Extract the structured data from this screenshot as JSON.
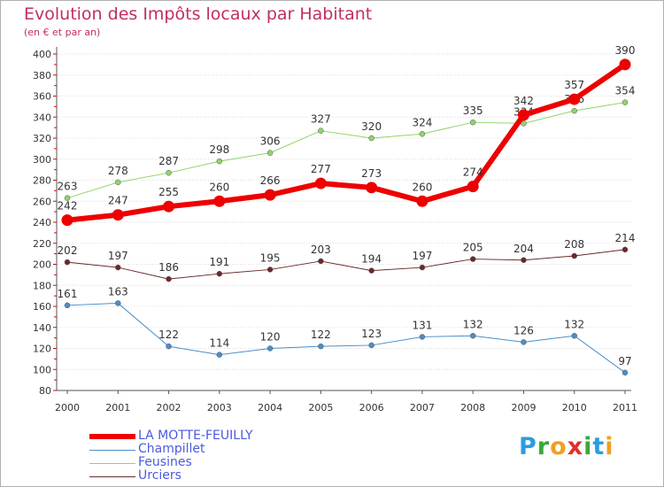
{
  "title": "Evolution des Impôts locaux par Habitant",
  "subtitle": "(en € et par an)",
  "logo": {
    "letters": [
      "P",
      "r",
      "o",
      "x",
      "i",
      "t",
      "i"
    ],
    "colors": [
      "#2b9de0",
      "#3aa83a",
      "#f0a020",
      "#e03030",
      "#3aa83a",
      "#2b9de0",
      "#f0a020"
    ]
  },
  "colors": {
    "axis": "#555555",
    "grid": "#dddddd",
    "tick_text": "#333333",
    "tick_red": "#e00000"
  },
  "chart_data": {
    "type": "line",
    "x": [
      "2000",
      "2001",
      "2002",
      "2003",
      "2004",
      "2005",
      "2006",
      "2007",
      "2008",
      "2009",
      "2010",
      "2011"
    ],
    "ylim": [
      80,
      400
    ],
    "yticks": [
      80,
      100,
      120,
      140,
      160,
      180,
      200,
      220,
      240,
      260,
      280,
      300,
      320,
      340,
      360,
      380,
      400
    ],
    "grid": "horizontal",
    "legend_position": "bottom-left",
    "series": [
      {
        "name": "Champillet",
        "color": "#4a8ec8",
        "width": 1,
        "values": [
          161,
          163,
          122,
          114,
          120,
          122,
          123,
          131,
          132,
          126,
          132,
          97
        ]
      },
      {
        "name": "Feusines",
        "color": "#8fd46a",
        "width": 1,
        "values": [
          263,
          278,
          287,
          298,
          306,
          327,
          320,
          324,
          335,
          334,
          346,
          354
        ]
      },
      {
        "name": "Urciers",
        "color": "#6a2a2a",
        "width": 1,
        "values": [
          202,
          197,
          186,
          191,
          195,
          203,
          194,
          197,
          205,
          204,
          208,
          214
        ]
      },
      {
        "name": "LA MOTTE-FEUILLY",
        "color": "#ee0000",
        "width": 6,
        "values": [
          242,
          247,
          255,
          260,
          266,
          277,
          273,
          260,
          274,
          342,
          357,
          390
        ]
      }
    ],
    "legend_order": [
      "LA MOTTE-FEUILLY",
      "Champillet",
      "Feusines",
      "Urciers"
    ],
    "value_labels": {
      "LA MOTTE-FEUILLY": [
        "242",
        "247",
        "255",
        "260",
        "266",
        "277",
        "273",
        "260",
        "274",
        "342",
        "357",
        "390"
      ],
      "Champillet": [
        "161",
        "163",
        "122",
        "114",
        "120",
        "122",
        "123",
        "131",
        "132",
        "126",
        "132",
        "97"
      ],
      "Feusines": [
        "263",
        "278",
        "287",
        "298",
        "306",
        "327",
        "320",
        "324",
        "335",
        "334",
        "346",
        "354"
      ],
      "Urciers": [
        "202",
        "197",
        "186",
        "191",
        "195",
        "203",
        "194",
        "197",
        "205",
        "204",
        "208",
        "214"
      ]
    }
  }
}
